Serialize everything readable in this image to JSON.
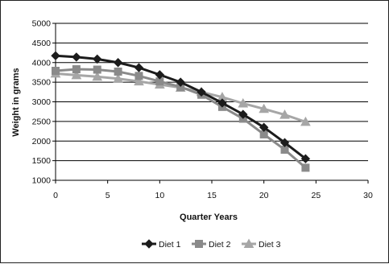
{
  "chart_data": {
    "type": "line",
    "title": "",
    "xlabel": "Quarter Years",
    "ylabel": "Weight in grams",
    "xlim": [
      0,
      30
    ],
    "ylim": [
      1000,
      5000
    ],
    "xticks": [
      "0",
      "5",
      "10",
      "15",
      "20",
      "25",
      "30"
    ],
    "yticks": [
      "1000",
      "1500",
      "2000",
      "2500",
      "3000",
      "3500",
      "4000",
      "4500",
      "5000"
    ],
    "grid": "horizontal",
    "legend_position": "bottom",
    "series": [
      {
        "name": "Diet 1",
        "color": "#1c1c1c",
        "marker": "diamond",
        "x": [
          0,
          2,
          4,
          6,
          8,
          10,
          12,
          14,
          16,
          18,
          20,
          22,
          24
        ],
        "y": [
          4175,
          4140,
          4090,
          4000,
          3870,
          3690,
          3500,
          3250,
          2970,
          2680,
          2350,
          1960,
          1550
        ]
      },
      {
        "name": "Diet 2",
        "color": "#8a8a8a",
        "marker": "square",
        "x": [
          0,
          2,
          4,
          6,
          8,
          10,
          12,
          14,
          16,
          18,
          20,
          22,
          24
        ],
        "y": [
          3790,
          3830,
          3820,
          3770,
          3660,
          3520,
          3380,
          3180,
          2870,
          2570,
          2170,
          1780,
          1320
        ]
      },
      {
        "name": "Diet 3",
        "color": "#a6a6a6",
        "marker": "triangle",
        "x": [
          0,
          2,
          4,
          6,
          8,
          10,
          12,
          14,
          16,
          18,
          20,
          22,
          24
        ],
        "y": [
          3720,
          3680,
          3640,
          3590,
          3520,
          3440,
          3360,
          3250,
          3120,
          2960,
          2820,
          2670,
          2490
        ]
      }
    ]
  }
}
